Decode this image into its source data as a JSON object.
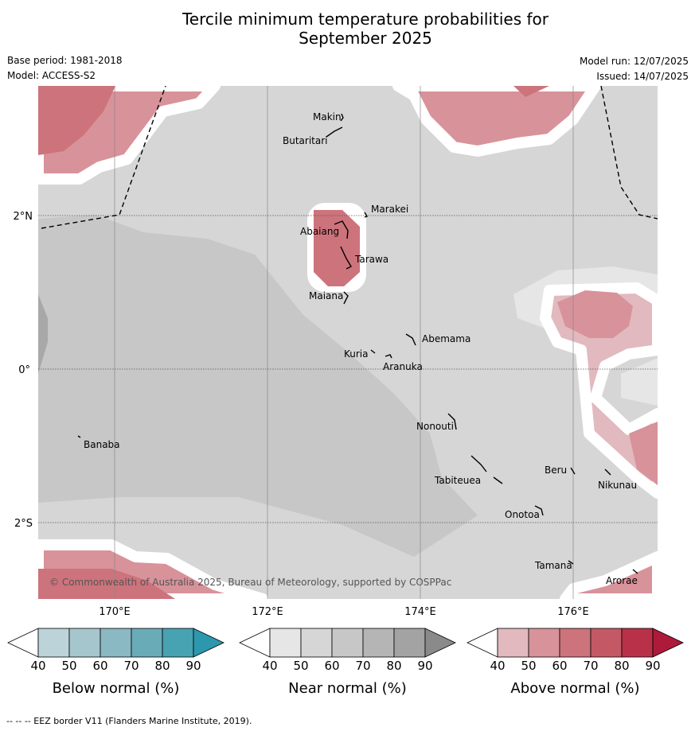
{
  "title_line1": "Tercile minimum temperature probabilities for",
  "title_line2": "September 2025",
  "meta": {
    "base_period": "Base period: 1981-2018",
    "model": "Model: ACCESS-S2",
    "model_run": "Model run: 12/07/2025",
    "issued": "Issued: 14/07/2025"
  },
  "axes": {
    "lon_ticks": [
      "170°E",
      "172°E",
      "174°E",
      "176°E"
    ],
    "lat_ticks": [
      "2°N",
      "0°",
      "2°S"
    ]
  },
  "places": [
    "Makin",
    "Butaritari",
    "Marakei",
    "Abaiang",
    "Tarawa",
    "Maiana",
    "Abemama",
    "Kuria",
    "Aranuka",
    "Banaba",
    "Nonouti",
    "Tabiteuea",
    "Beru",
    "Nikunau",
    "Onotoa",
    "Tamana",
    "Arorae"
  ],
  "copyright": "© Commonwealth of Australia 2025, Bureau of Meteorology, supported by COSPPac",
  "legends": [
    {
      "title": "Below normal (%)",
      "ticks": [
        "40",
        "50",
        "60",
        "70",
        "80",
        "90"
      ],
      "colors": [
        "#ffffff",
        "#bcd3da",
        "#a6c6cd",
        "#8ab8c3",
        "#6aabb8",
        "#47a2b2",
        "#2d97ad"
      ]
    },
    {
      "title": "Near normal (%)",
      "ticks": [
        "40",
        "50",
        "60",
        "70",
        "80",
        "90"
      ],
      "colors": [
        "#ffffff",
        "#e6e6e6",
        "#d6d6d6",
        "#c7c7c7",
        "#b5b5b5",
        "#a3a3a3",
        "#8a8a8a"
      ]
    },
    {
      "title": "Above normal (%)",
      "ticks": [
        "40",
        "50",
        "60",
        "70",
        "80",
        "90"
      ],
      "colors": [
        "#ffffff",
        "#e1b9bf",
        "#d8929a",
        "#cd737c",
        "#c45965",
        "#b83148",
        "#ae1a3a"
      ]
    }
  ],
  "footnote": "--  --  -- EEZ border V11 (Flanders Marine Institute, 2019)."
}
